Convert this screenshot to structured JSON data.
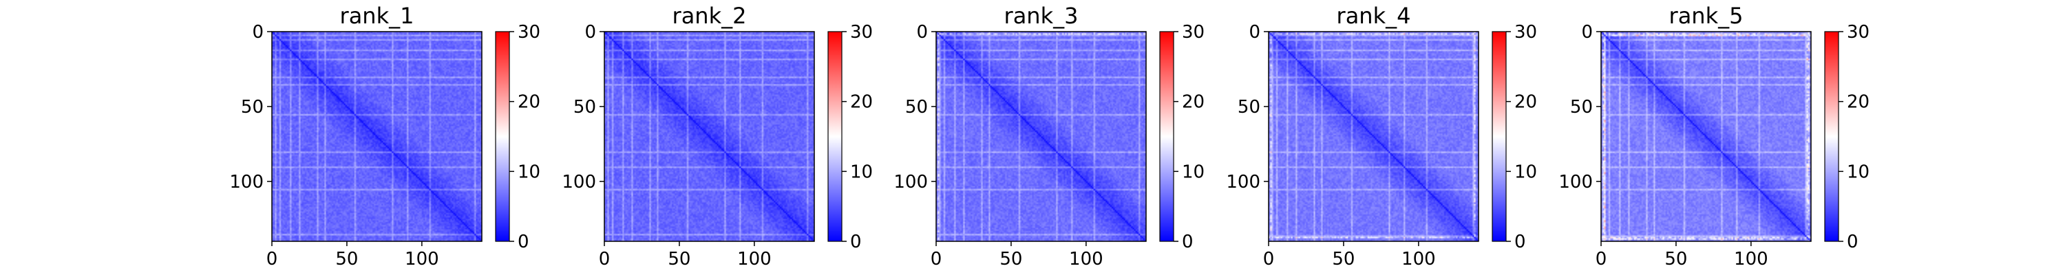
{
  "chart_data": [
    {
      "type": "heatmap",
      "title": "rank_1",
      "rows": 140,
      "cols": 140,
      "xlim": [
        0,
        140
      ],
      "ylim": [
        0,
        140
      ],
      "xticks": [
        0,
        50,
        100
      ],
      "yticks": [
        0,
        50,
        100
      ],
      "colorbar": {
        "range": [
          0,
          30
        ],
        "ticks": [
          0,
          10,
          20,
          30
        ],
        "colormap": "bwr"
      },
      "pattern": {
        "diagonal": 0,
        "background_mean": 6,
        "bright_rows": [
          2,
          5,
          12,
          18,
          30,
          35,
          55,
          80,
          90,
          105,
          135
        ],
        "hot_rows": []
      }
    },
    {
      "type": "heatmap",
      "title": "rank_2",
      "rows": 140,
      "cols": 140,
      "xlim": [
        0,
        140
      ],
      "ylim": [
        0,
        140
      ],
      "xticks": [
        0,
        50,
        100
      ],
      "yticks": [
        0,
        50,
        100
      ],
      "colorbar": {
        "range": [
          0,
          30
        ],
        "ticks": [
          0,
          10,
          20,
          30
        ],
        "colormap": "bwr"
      },
      "pattern": {
        "diagonal": 0,
        "background_mean": 6,
        "bright_rows": [
          2,
          5,
          12,
          18,
          30,
          35,
          55,
          80,
          90,
          105,
          135
        ],
        "hot_rows": []
      }
    },
    {
      "type": "heatmap",
      "title": "rank_3",
      "rows": 140,
      "cols": 140,
      "xlim": [
        0,
        140
      ],
      "ylim": [
        0,
        140
      ],
      "xticks": [
        0,
        50,
        100
      ],
      "yticks": [
        0,
        50,
        100
      ],
      "colorbar": {
        "range": [
          0,
          30
        ],
        "ticks": [
          0,
          10,
          20,
          30
        ],
        "colormap": "bwr"
      },
      "pattern": {
        "diagonal": 0,
        "background_mean": 6.5,
        "bright_rows": [
          2,
          5,
          12,
          18,
          30,
          35,
          55,
          80,
          90,
          105,
          135
        ],
        "hot_rows": [
          1
        ]
      }
    },
    {
      "type": "heatmap",
      "title": "rank_4",
      "rows": 140,
      "cols": 140,
      "xlim": [
        0,
        140
      ],
      "ylim": [
        0,
        140
      ],
      "xticks": [
        0,
        50,
        100
      ],
      "yticks": [
        0,
        50,
        100
      ],
      "colorbar": {
        "range": [
          0,
          30
        ],
        "ticks": [
          0,
          10,
          20,
          30
        ],
        "colormap": "bwr"
      },
      "pattern": {
        "diagonal": 0,
        "background_mean": 7,
        "bright_rows": [
          2,
          5,
          12,
          18,
          30,
          35,
          55,
          80,
          90,
          105,
          136
        ],
        "hot_rows": [
          1,
          137
        ]
      }
    },
    {
      "type": "heatmap",
      "title": "rank_5",
      "rows": 140,
      "cols": 140,
      "xlim": [
        0,
        140
      ],
      "ylim": [
        0,
        140
      ],
      "xticks": [
        0,
        50,
        100
      ],
      "yticks": [
        0,
        50,
        100
      ],
      "colorbar": {
        "range": [
          0,
          30
        ],
        "ticks": [
          0,
          10,
          20,
          30
        ],
        "colormap": "bwr"
      },
      "pattern": {
        "diagonal": 0,
        "background_mean": 7.5,
        "bright_rows": [
          2,
          5,
          12,
          18,
          30,
          35,
          55,
          80,
          90,
          105,
          136
        ],
        "hot_rows": [
          1,
          2,
          137,
          138
        ]
      }
    }
  ]
}
